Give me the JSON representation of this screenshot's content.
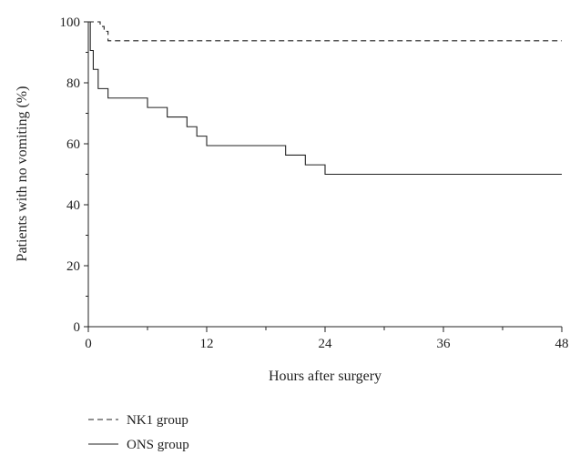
{
  "chart_data": {
    "type": "line",
    "title": "",
    "xlabel": "Hours after surgery",
    "ylabel": "Patients with no vomiting (%)",
    "xlim": [
      0,
      48
    ],
    "ylim": [
      0,
      100
    ],
    "xticks": [
      0,
      12,
      24,
      36,
      48
    ],
    "yticks": [
      0,
      20,
      40,
      60,
      80,
      100
    ],
    "grid": false,
    "legend_position": "bottom-left",
    "step": true,
    "series": [
      {
        "name": "NK1 group",
        "style": "dashed",
        "color": "#222222",
        "points": [
          [
            0,
            100
          ],
          [
            0.8,
            100
          ],
          [
            1.2,
            98.5
          ],
          [
            1.6,
            96.9
          ],
          [
            2,
            93.8
          ],
          [
            48,
            93.8
          ]
        ]
      },
      {
        "name": "ONS group",
        "style": "solid",
        "color": "#222222",
        "points": [
          [
            0,
            100
          ],
          [
            0.2,
            90.6
          ],
          [
            0.5,
            84.4
          ],
          [
            1,
            78.1
          ],
          [
            2,
            75
          ],
          [
            6,
            71.9
          ],
          [
            8,
            68.8
          ],
          [
            10,
            65.6
          ],
          [
            11,
            62.5
          ],
          [
            12,
            59.4
          ],
          [
            20,
            56.3
          ],
          [
            22,
            53.1
          ],
          [
            24,
            50
          ],
          [
            48,
            50
          ]
        ]
      }
    ]
  }
}
